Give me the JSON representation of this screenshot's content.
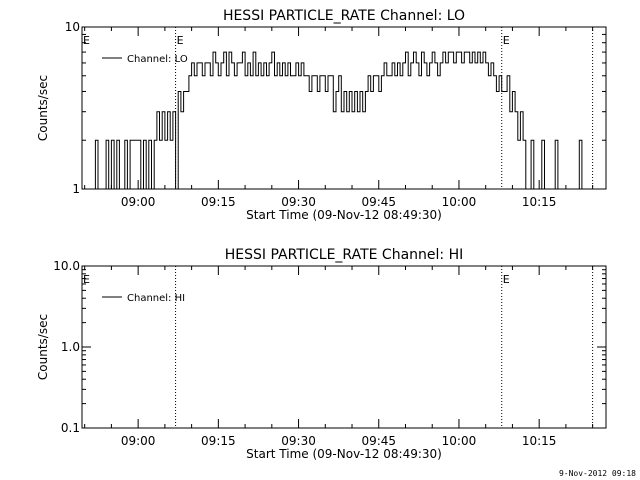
{
  "footer_timestamp": "9-Nov-2012 09:18",
  "chart_data": [
    {
      "type": "line",
      "title": "HESSI PARTICLE_RATE Channel: LO",
      "xlabel": "Start Time (09-Nov-12 08:49:30)",
      "ylabel": "Counts/sec",
      "yscale": "log",
      "ylim": [
        1,
        10
      ],
      "y_ticks": [
        {
          "value": 1,
          "label": "1"
        },
        {
          "value": 10,
          "label": "10"
        }
      ],
      "xlim": [
        "08:49:30",
        "10:27:30"
      ],
      "x_ticks": [
        "09:00",
        "09:15",
        "09:30",
        "09:45",
        "10:00",
        "10:15"
      ],
      "grid": false,
      "legend": {
        "placement": "top-left",
        "entries": [
          "Channel: LO"
        ]
      },
      "markers": [
        {
          "time": "09:07:00",
          "label": "E"
        },
        {
          "time": "10:08:00",
          "label": "E"
        },
        {
          "time": "10:25:00",
          "label": ""
        }
      ],
      "edge_labels": [
        {
          "position": "left",
          "label": "E"
        }
      ],
      "series": [
        {
          "name": "Channel: LO",
          "points": [
            [
              "08:49:30",
              1
            ],
            [
              "08:50:00",
              1
            ],
            [
              "08:52:00",
              2
            ],
            [
              "08:52:30",
              1
            ],
            [
              "08:53:00",
              1
            ],
            [
              "08:54:00",
              2
            ],
            [
              "08:54:30",
              1
            ],
            [
              "08:55:00",
              2
            ],
            [
              "08:55:30",
              1
            ],
            [
              "08:56:00",
              2
            ],
            [
              "08:56:30",
              1
            ],
            [
              "08:57:30",
              2
            ],
            [
              "08:58:00",
              1
            ],
            [
              "08:58:30",
              2
            ],
            [
              "09:00:00",
              2
            ],
            [
              "09:00:30",
              1
            ],
            [
              "09:01:00",
              2
            ],
            [
              "09:01:30",
              1
            ],
            [
              "09:02:00",
              2
            ],
            [
              "09:02:30",
              1
            ],
            [
              "09:03:00",
              2
            ],
            [
              "09:03:30",
              3
            ],
            [
              "09:04:00",
              2
            ],
            [
              "09:04:30",
              3
            ],
            [
              "09:05:00",
              2
            ],
            [
              "09:05:30",
              3
            ],
            [
              "09:06:00",
              2
            ],
            [
              "09:06:30",
              3
            ],
            [
              "09:07:00",
              1
            ],
            [
              "09:07:30",
              4
            ],
            [
              "09:08:00",
              3
            ],
            [
              "09:08:30",
              4
            ],
            [
              "09:09:00",
              4
            ],
            [
              "09:09:30",
              5
            ],
            [
              "09:10:00",
              6
            ],
            [
              "09:10:30",
              5
            ],
            [
              "09:11:00",
              6
            ],
            [
              "09:11:30",
              6
            ],
            [
              "09:12:00",
              5
            ],
            [
              "09:12:30",
              6
            ],
            [
              "09:13:00",
              6
            ],
            [
              "09:13:30",
              5
            ],
            [
              "09:14:00",
              7
            ],
            [
              "09:14:30",
              6
            ],
            [
              "09:15:00",
              5
            ],
            [
              "09:15:30",
              6
            ],
            [
              "09:16:00",
              7
            ],
            [
              "09:16:30",
              5
            ],
            [
              "09:17:00",
              7
            ],
            [
              "09:17:30",
              6
            ],
            [
              "09:18:00",
              5
            ],
            [
              "09:18:30",
              6
            ],
            [
              "09:19:00",
              6
            ],
            [
              "09:19:30",
              7
            ],
            [
              "09:20:00",
              5
            ],
            [
              "09:20:30",
              6
            ],
            [
              "09:21:00",
              5
            ],
            [
              "09:21:30",
              7
            ],
            [
              "09:22:00",
              5
            ],
            [
              "09:22:30",
              6
            ],
            [
              "09:23:00",
              5
            ],
            [
              "09:23:30",
              6
            ],
            [
              "09:24:00",
              5
            ],
            [
              "09:24:30",
              6
            ],
            [
              "09:25:00",
              7
            ],
            [
              "09:25:30",
              5
            ],
            [
              "09:26:00",
              6
            ],
            [
              "09:26:30",
              5
            ],
            [
              "09:27:00",
              6
            ],
            [
              "09:27:30",
              5
            ],
            [
              "09:28:00",
              6
            ],
            [
              "09:28:30",
              5
            ],
            [
              "09:29:00",
              5
            ],
            [
              "09:29:30",
              6
            ],
            [
              "09:30:00",
              5
            ],
            [
              "09:30:30",
              6
            ],
            [
              "09:31:00",
              5
            ],
            [
              "09:31:30",
              5
            ],
            [
              "09:32:00",
              4
            ],
            [
              "09:32:30",
              5
            ],
            [
              "09:33:00",
              5
            ],
            [
              "09:33:30",
              4
            ],
            [
              "09:34:00",
              5
            ],
            [
              "09:34:30",
              5
            ],
            [
              "09:35:00",
              4
            ],
            [
              "09:35:30",
              5
            ],
            [
              "09:36:00",
              5
            ],
            [
              "09:36:30",
              3
            ],
            [
              "09:37:00",
              4
            ],
            [
              "09:37:30",
              5
            ],
            [
              "09:38:00",
              3
            ],
            [
              "09:38:30",
              4
            ],
            [
              "09:39:00",
              3
            ],
            [
              "09:39:30",
              4
            ],
            [
              "09:40:00",
              3
            ],
            [
              "09:40:30",
              4
            ],
            [
              "09:41:00",
              3
            ],
            [
              "09:41:30",
              4
            ],
            [
              "09:42:00",
              3
            ],
            [
              "09:42:30",
              4
            ],
            [
              "09:43:00",
              5
            ],
            [
              "09:43:30",
              4
            ],
            [
              "09:44:00",
              5
            ],
            [
              "09:44:30",
              5
            ],
            [
              "09:45:00",
              4
            ],
            [
              "09:45:30",
              5
            ],
            [
              "09:46:00",
              6
            ],
            [
              "09:46:30",
              5
            ],
            [
              "09:47:00",
              5
            ],
            [
              "09:47:30",
              6
            ],
            [
              "09:48:00",
              5
            ],
            [
              "09:48:30",
              6
            ],
            [
              "09:49:00",
              5
            ],
            [
              "09:49:30",
              6
            ],
            [
              "09:50:00",
              7
            ],
            [
              "09:50:30",
              5
            ],
            [
              "09:51:00",
              6
            ],
            [
              "09:51:30",
              7
            ],
            [
              "09:52:00",
              6
            ],
            [
              "09:52:30",
              5
            ],
            [
              "09:53:00",
              7
            ],
            [
              "09:53:30",
              6
            ],
            [
              "09:54:00",
              5
            ],
            [
              "09:54:30",
              6
            ],
            [
              "09:55:00",
              7
            ],
            [
              "09:55:30",
              6
            ],
            [
              "09:56:00",
              5
            ],
            [
              "09:56:30",
              6
            ],
            [
              "09:57:00",
              7
            ],
            [
              "09:57:30",
              6
            ],
            [
              "09:58:00",
              7
            ],
            [
              "09:58:30",
              7
            ],
            [
              "09:59:00",
              6
            ],
            [
              "09:59:30",
              7
            ],
            [
              "10:00:00",
              7
            ],
            [
              "10:00:30",
              6
            ],
            [
              "10:01:00",
              7
            ],
            [
              "10:01:30",
              7
            ],
            [
              "10:02:00",
              6
            ],
            [
              "10:02:30",
              7
            ],
            [
              "10:03:00",
              6
            ],
            [
              "10:03:30",
              7
            ],
            [
              "10:04:00",
              6
            ],
            [
              "10:04:30",
              7
            ],
            [
              "10:05:00",
              6
            ],
            [
              "10:05:30",
              5
            ],
            [
              "10:06:00",
              6
            ],
            [
              "10:06:30",
              5
            ],
            [
              "10:07:00",
              4
            ],
            [
              "10:07:30",
              5
            ],
            [
              "10:08:00",
              4
            ],
            [
              "10:08:30",
              4
            ],
            [
              "10:09:00",
              5
            ],
            [
              "10:09:30",
              3
            ],
            [
              "10:10:00",
              4
            ],
            [
              "10:10:30",
              3
            ],
            [
              "10:11:00",
              2
            ],
            [
              "10:11:30",
              3
            ],
            [
              "10:12:00",
              2
            ],
            [
              "10:12:30",
              1
            ],
            [
              "10:13:00",
              1
            ],
            [
              "10:13:30",
              2
            ],
            [
              "10:14:00",
              1
            ],
            [
              "10:15:00",
              1
            ],
            [
              "10:15:30",
              2
            ],
            [
              "10:16:00",
              1
            ],
            [
              "10:17:30",
              1
            ],
            [
              "10:18:00",
              2
            ],
            [
              "10:18:30",
              1
            ],
            [
              "10:22:00",
              1
            ],
            [
              "10:22:30",
              2
            ],
            [
              "10:23:00",
              1
            ]
          ]
        }
      ]
    },
    {
      "type": "line",
      "title": "HESSI PARTICLE_RATE Channel: HI",
      "xlabel": "Start Time (09-Nov-12 08:49:30)",
      "ylabel": "Counts/sec",
      "yscale": "log",
      "ylim": [
        0.1,
        10
      ],
      "y_ticks": [
        {
          "value": 0.1,
          "label": "0.1"
        },
        {
          "value": 1,
          "label": "1.0"
        },
        {
          "value": 10,
          "label": "10.0"
        }
      ],
      "xlim": [
        "08:49:30",
        "10:27:30"
      ],
      "x_ticks": [
        "09:00",
        "09:15",
        "09:30",
        "09:45",
        "10:00",
        "10:15"
      ],
      "grid": false,
      "legend": {
        "placement": "top-left",
        "entries": [
          "Channel: HI"
        ]
      },
      "markers": [
        {
          "time": "09:07:00",
          "label": ""
        },
        {
          "time": "10:08:00",
          "label": "E"
        },
        {
          "time": "10:25:00",
          "label": ""
        }
      ],
      "edge_labels": [
        {
          "position": "left",
          "label": "E"
        }
      ],
      "series": [
        {
          "name": "Channel: HI",
          "points": []
        }
      ]
    }
  ]
}
